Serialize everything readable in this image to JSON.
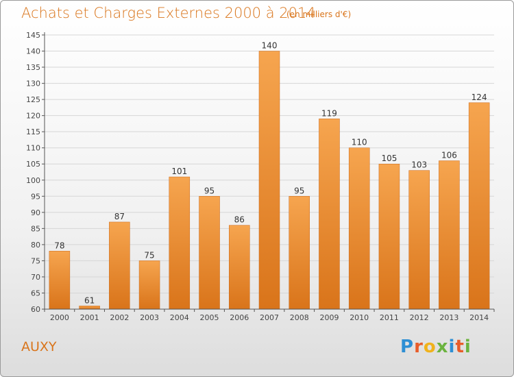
{
  "header": {
    "title": "Achats et Charges Externes 2000 à 2014",
    "subtitle": "(en milliers d'€)"
  },
  "footer": {
    "place": "AUXY",
    "logo_letters": [
      "P",
      "r",
      "o",
      "x",
      "i",
      "t",
      "i"
    ],
    "logo_colors": [
      "#2e8fd4",
      "#e85d2a",
      "#f0b21c",
      "#6bb33f",
      "#2e8fd4",
      "#e85d2a",
      "#6bb33f"
    ]
  },
  "chart_data": {
    "type": "bar",
    "categories": [
      "2000",
      "2001",
      "2002",
      "2003",
      "2004",
      "2005",
      "2006",
      "2007",
      "2008",
      "2009",
      "2010",
      "2011",
      "2012",
      "2013",
      "2014"
    ],
    "values": [
      78,
      61,
      87,
      75,
      101,
      95,
      86,
      140,
      95,
      119,
      110,
      105,
      103,
      106,
      124
    ],
    "ylim": [
      60,
      145
    ],
    "yticks": [
      60,
      65,
      70,
      75,
      80,
      85,
      90,
      95,
      100,
      105,
      110,
      115,
      120,
      125,
      130,
      135,
      140,
      145
    ],
    "grid": true,
    "colors": {
      "bar_light": "#f6a54f",
      "bar_dark": "#d9741a",
      "grid": "#d6d6d6",
      "axis": "#555555"
    }
  }
}
